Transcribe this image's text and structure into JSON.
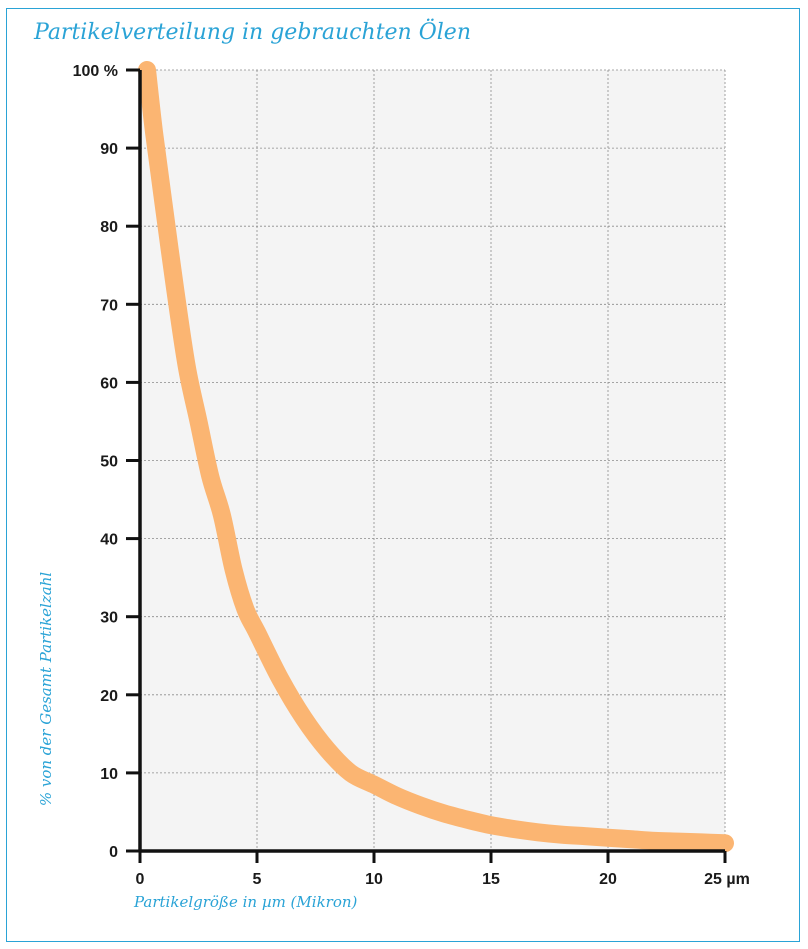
{
  "colors": {
    "accent": "#2aa3d6",
    "curve": "#fbb572",
    "plot_background": "#f4f4f4",
    "grid": "#8a8a8a",
    "axis": "#111111"
  },
  "chart_data": {
    "type": "line",
    "title": "Partikelverteilung in gebrauchten Ölen",
    "xlabel": "Partikelgröße in  µm (Mikron)",
    "ylabel": "% von der Gesamt Partikelzahl",
    "xlim": [
      0,
      25
    ],
    "ylim": [
      0,
      100
    ],
    "x_ticks": [
      "0",
      "5",
      "10",
      "15",
      "20",
      "25 µm"
    ],
    "x_tick_values": [
      0,
      5,
      10,
      15,
      20,
      25
    ],
    "y_ticks": [
      "0",
      "10",
      "20",
      "30",
      "40",
      "50",
      "60",
      "70",
      "80",
      "90",
      "100 %"
    ],
    "y_tick_values": [
      0,
      10,
      20,
      30,
      40,
      50,
      60,
      70,
      80,
      90,
      100
    ],
    "grid": true,
    "series": [
      {
        "x": [
          0.3,
          0.6,
          1.0,
          1.5,
          2.0,
          2.5,
          3.0,
          3.5,
          4.0,
          4.5,
          5.0,
          6.0,
          7.0,
          8.0,
          9.0,
          10.0,
          11.0,
          12.0,
          13.0,
          14.0,
          15.0,
          16.0,
          17.0,
          18.0,
          19.0,
          20.0,
          21.0,
          22.0,
          23.0,
          24.0,
          25.0
        ],
        "y": [
          100,
          92,
          83,
          72,
          62,
          55,
          48,
          43,
          36,
          31,
          28,
          22,
          17,
          13,
          10,
          8.5,
          7,
          5.8,
          4.8,
          4.0,
          3.3,
          2.8,
          2.4,
          2.1,
          1.9,
          1.7,
          1.5,
          1.3,
          1.2,
          1.1,
          1.0
        ]
      }
    ]
  }
}
